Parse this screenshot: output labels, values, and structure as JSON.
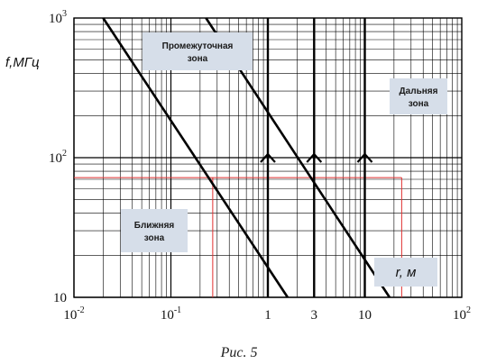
{
  "chart_data": {
    "type": "line",
    "x_scale": "log",
    "y_scale": "log",
    "xlim": [
      0.01,
      100
    ],
    "ylim": [
      10,
      1000
    ],
    "ylabel": "f,МГц",
    "xlabel": "r, м",
    "caption": "Рис. 5",
    "x_ticks": [
      {
        "value": 0.01,
        "base": "10",
        "exp": "-2"
      },
      {
        "value": 0.1,
        "base": "10",
        "exp": "-1"
      },
      {
        "value": 1,
        "base": "1",
        "exp": ""
      },
      {
        "value": 3,
        "base": "3",
        "exp": ""
      },
      {
        "value": 10,
        "base": "10",
        "exp": ""
      },
      {
        "value": 100,
        "base": "10",
        "exp": "2"
      }
    ],
    "y_ticks": [
      {
        "value": 10,
        "base": "10",
        "exp": ""
      },
      {
        "value": 100,
        "base": "10",
        "exp": "2"
      },
      {
        "value": 1000,
        "base": "10",
        "exp": "3"
      }
    ],
    "boundary_lines": [
      {
        "points": [
          [
            0.02,
            1000
          ],
          [
            1.6,
            10
          ]
        ]
      },
      {
        "points": [
          [
            0.23,
            1000
          ],
          [
            18,
            10
          ]
        ]
      }
    ],
    "vertical_markers": [
      1,
      3,
      10
    ],
    "marker_arrow_y": 100,
    "reference": {
      "f": 72,
      "r_near": 0.27,
      "r_far": 24
    },
    "zones": [
      {
        "lines": [
          "Промежуточная",
          "зона"
        ]
      },
      {
        "lines": [
          "Дальняя",
          "зона"
        ]
      },
      {
        "lines": [
          "Ближняя",
          "зона"
        ]
      }
    ],
    "colors": {
      "grid": "#000000",
      "curve": "#000000",
      "reference": "#e03030",
      "zone_fill": "#d6dee9"
    }
  }
}
